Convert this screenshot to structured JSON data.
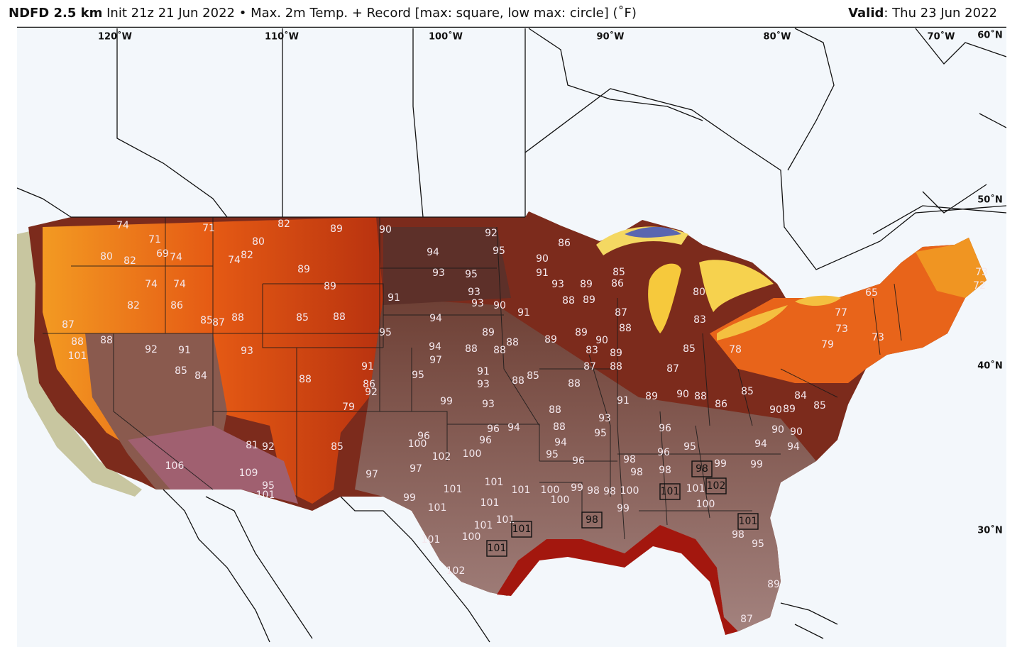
{
  "header": {
    "product": "NDFD 2.5 km",
    "init": "Init 21z 21 Jun 2022",
    "separator": "•",
    "description": "Max. 2m Temp. + Record [max: square, low max: circle] (˚F)",
    "valid_label": "Valid",
    "valid_value": ": Thu 23 Jun 2022"
  },
  "map": {
    "longitude_labels": [
      "120˚W",
      "110˚W",
      "100˚W",
      "90˚W",
      "80˚W",
      "70˚W"
    ],
    "latitude_labels": [
      "60˚N",
      "50˚N",
      "40˚N",
      "30˚N"
    ],
    "temperatures": [
      74,
      71,
      71,
      82,
      89,
      90,
      92,
      94,
      95,
      90,
      86,
      80,
      82,
      74,
      69,
      74,
      80,
      82,
      89,
      93,
      95,
      91,
      93,
      89,
      85,
      86,
      74,
      74,
      82,
      86,
      85,
      87,
      88,
      85,
      88,
      89,
      91,
      93,
      93,
      90,
      91,
      88,
      89,
      87,
      94,
      95,
      89,
      88,
      89,
      90,
      87,
      88,
      88,
      92,
      91,
      93,
      101,
      94,
      97,
      88,
      88,
      88,
      89,
      83,
      89,
      88,
      87,
      87,
      85,
      91,
      95,
      91,
      93,
      88,
      85,
      88,
      86,
      92,
      88,
      85,
      84,
      79,
      99,
      93,
      88,
      91,
      89,
      90,
      88,
      86,
      93,
      96,
      94,
      88,
      95,
      96,
      100,
      96,
      96,
      94,
      95,
      96,
      102,
      100,
      97,
      97,
      98,
      96,
      98,
      98,
      95,
      94,
      81,
      92,
      85,
      109,
      106,
      95,
      101,
      101,
      101,
      101,
      100,
      99,
      98,
      98,
      100,
      100,
      99,
      101,
      101,
      101,
      101,
      100,
      101,
      102,
      99,
      100,
      101,
      99,
      99,
      78,
      85,
      79,
      73,
      77,
      73,
      72,
      80,
      83,
      65,
      73,
      84,
      85,
      90,
      89,
      90,
      90,
      94,
      98,
      95,
      89,
      87
    ],
    "records": [
      98,
      102,
      101,
      101,
      101,
      98,
      101
    ]
  }
}
